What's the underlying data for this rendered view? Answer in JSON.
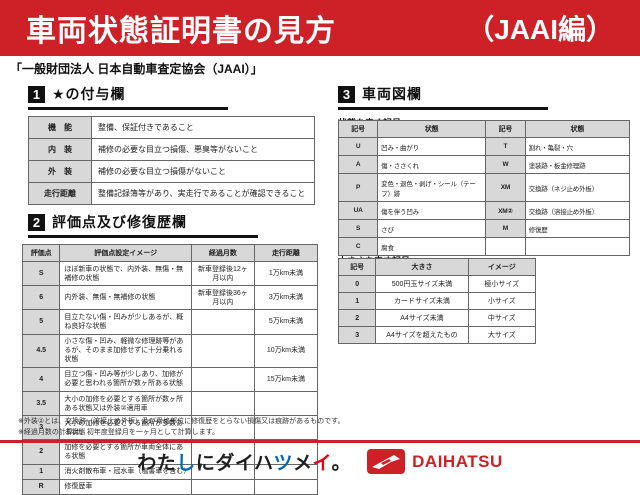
{
  "banner": {
    "title": "車両状態証明書の見方",
    "edition": "（JAAI編）"
  },
  "subtitle": "「一般財団法人 日本自動車査定協会（JAAI）」",
  "colors": {
    "accent_red": "#cd2127",
    "table_header_bg": "#d8d8d8"
  },
  "section1": {
    "number": "1",
    "title": "★の付与欄",
    "rows": [
      {
        "label": "機　能",
        "value": "整備、保証付きであること"
      },
      {
        "label": "内　装",
        "value": "補修の必要な目立つ損傷、悪臭等がないこと"
      },
      {
        "label": "外　装",
        "value": "補修の必要な目立つ損傷がないこと"
      },
      {
        "label": "走行距離",
        "value": "整備記録簿等があり、実走行であることが確認できること"
      }
    ]
  },
  "section2": {
    "number": "2",
    "title": "評価点及び修復歴欄",
    "headers": [
      "評価点",
      "評価点設定イメージ",
      "経過月数",
      "走行距離"
    ],
    "rows": [
      [
        "S",
        "ほぼ新車の状態で、内外装、無傷・無補修の状態",
        "新車登録後12ヶ月以内",
        "1万km未満"
      ],
      [
        "6",
        "内外装、無傷・無補修の状態",
        "新車登録後36ヶ月以内",
        "3万km未満"
      ],
      [
        "5",
        "目立たない傷・凹みが少しあるが、概ね良好な状態",
        "",
        "5万km未満"
      ],
      [
        "4.5",
        "小さな傷・凹み、軽微な修理跡等があるが、そのまま加修せずに十分乗れる状態",
        "",
        "10万km未満"
      ],
      [
        "4",
        "目立つ傷・凹み等が少しあり、加修が必要と思われる箇所が数ヶ所ある状態",
        "",
        "15万km未満"
      ],
      [
        "3.5",
        "大小の加修を必要とする箇所が数ヶ所ある状態又は外装②適用車",
        "",
        ""
      ],
      [
        "3",
        "大小の加修を必要とする箇所が多数ある状態",
        "",
        ""
      ],
      [
        "2",
        "加修を必要とする箇所が車両全体にある状態",
        "",
        ""
      ],
      [
        "1",
        "消火剤散布車・冠水車（塩害車を含む）",
        "",
        ""
      ],
      [
        "R",
        "修復歴車",
        "",
        ""
      ]
    ]
  },
  "section3": {
    "number": "3",
    "title": "車両図欄",
    "condition": {
      "label": "状態を表す記号",
      "headers": [
        "記号",
        "状態",
        "記号",
        "状態"
      ],
      "rows": [
        [
          "U",
          "凹み・曲がり",
          "T",
          "割れ・亀裂・穴"
        ],
        [
          "A",
          "傷・ささくれ",
          "W",
          "塗装跡・板金修理跡"
        ],
        [
          "P",
          "変色・退色・剥げ・シール（テープ）跡",
          "XM",
          "交換跡（ネジ止め外板）"
        ],
        [
          "UA",
          "傷を伴う凹み",
          "XM②",
          "交換跡（溶接止め外板）"
        ],
        [
          "S",
          "さび",
          "M",
          "修復歴"
        ],
        [
          "C",
          "腐食",
          "",
          ""
        ]
      ]
    },
    "size": {
      "label": "大きさを表す記号",
      "headers": [
        "記号",
        "大きさ",
        "イメージ"
      ],
      "rows": [
        [
          "0",
          "500円玉サイズ未満",
          "極小サイズ"
        ],
        [
          "1",
          "カードサイズ未満",
          "小サイズ"
        ],
        [
          "2",
          "A4サイズ未満",
          "中サイズ"
        ],
        [
          "3",
          "A4サイズを超えたもの",
          "大サイズ"
        ]
      ]
    }
  },
  "notes": [
    "※外装②とは、交換跡（溶接止め外板）及び骨格部位に修復歴をとらない損傷又は痕跡があるものです。",
    "※経過月数の計算は、初年度登録月を一ヶ月として計算します。"
  ],
  "footer": {
    "slogan": [
      {
        "char": "わ",
        "color": "#1f1f1f"
      },
      {
        "char": "た",
        "color": "#1f1f1f"
      },
      {
        "char": "し",
        "color": "#0068b7"
      },
      {
        "char": "に",
        "color": "#1f1f1f"
      },
      {
        "char": "ダ",
        "color": "#1f1f1f"
      },
      {
        "char": "イ",
        "color": "#1f1f1f"
      },
      {
        "char": "ハ",
        "color": "#1f1f1f"
      },
      {
        "char": "ツ",
        "color": "#0068b7"
      },
      {
        "char": "メ",
        "color": "#1f1f1f"
      },
      {
        "char": "イ",
        "color": "#e60012"
      },
      {
        "char": "。",
        "color": "#1f1f1f"
      }
    ],
    "brand": "DAIHATSU"
  }
}
